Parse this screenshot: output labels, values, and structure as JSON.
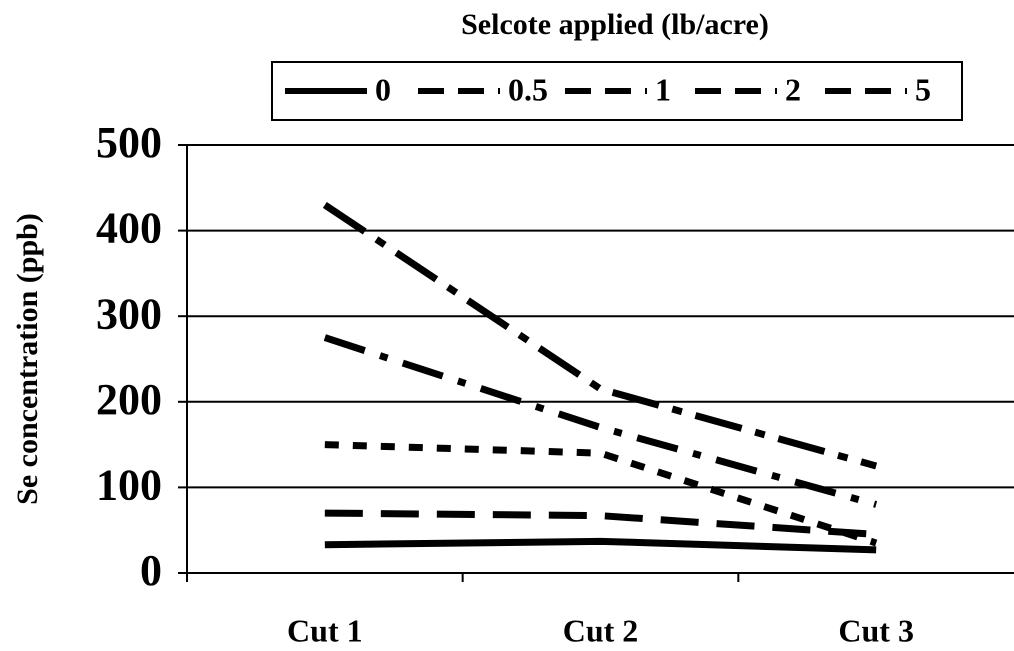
{
  "chart_data": {
    "type": "line",
    "legend_title": "Selcote applied (lb/acre)",
    "y_label": "Se concentration (ppb)",
    "categories": [
      "Cut 1",
      "Cut 2",
      "Cut 3"
    ],
    "series": [
      {
        "name": "0",
        "color": "#000000",
        "dash": "none",
        "values": [
          33,
          37,
          27
        ]
      },
      {
        "name": "0.5",
        "color": "#000000",
        "dash": "38 18",
        "values": [
          70,
          67,
          45
        ]
      },
      {
        "name": "1",
        "color": "#000000",
        "dash": "14 14",
        "values": [
          150,
          140,
          35
        ]
      },
      {
        "name": "2",
        "color": "#000000",
        "dash": "42 16 8 16",
        "values": [
          275,
          170,
          80
        ]
      },
      {
        "name": "5",
        "color": "#000000",
        "dash": "48 14 10 14",
        "values": [
          430,
          215,
          125
        ]
      }
    ],
    "ylim": [
      0,
      500
    ],
    "yticks": [
      0,
      100,
      200,
      300,
      400,
      500
    ],
    "grid": true,
    "legend": "top"
  }
}
